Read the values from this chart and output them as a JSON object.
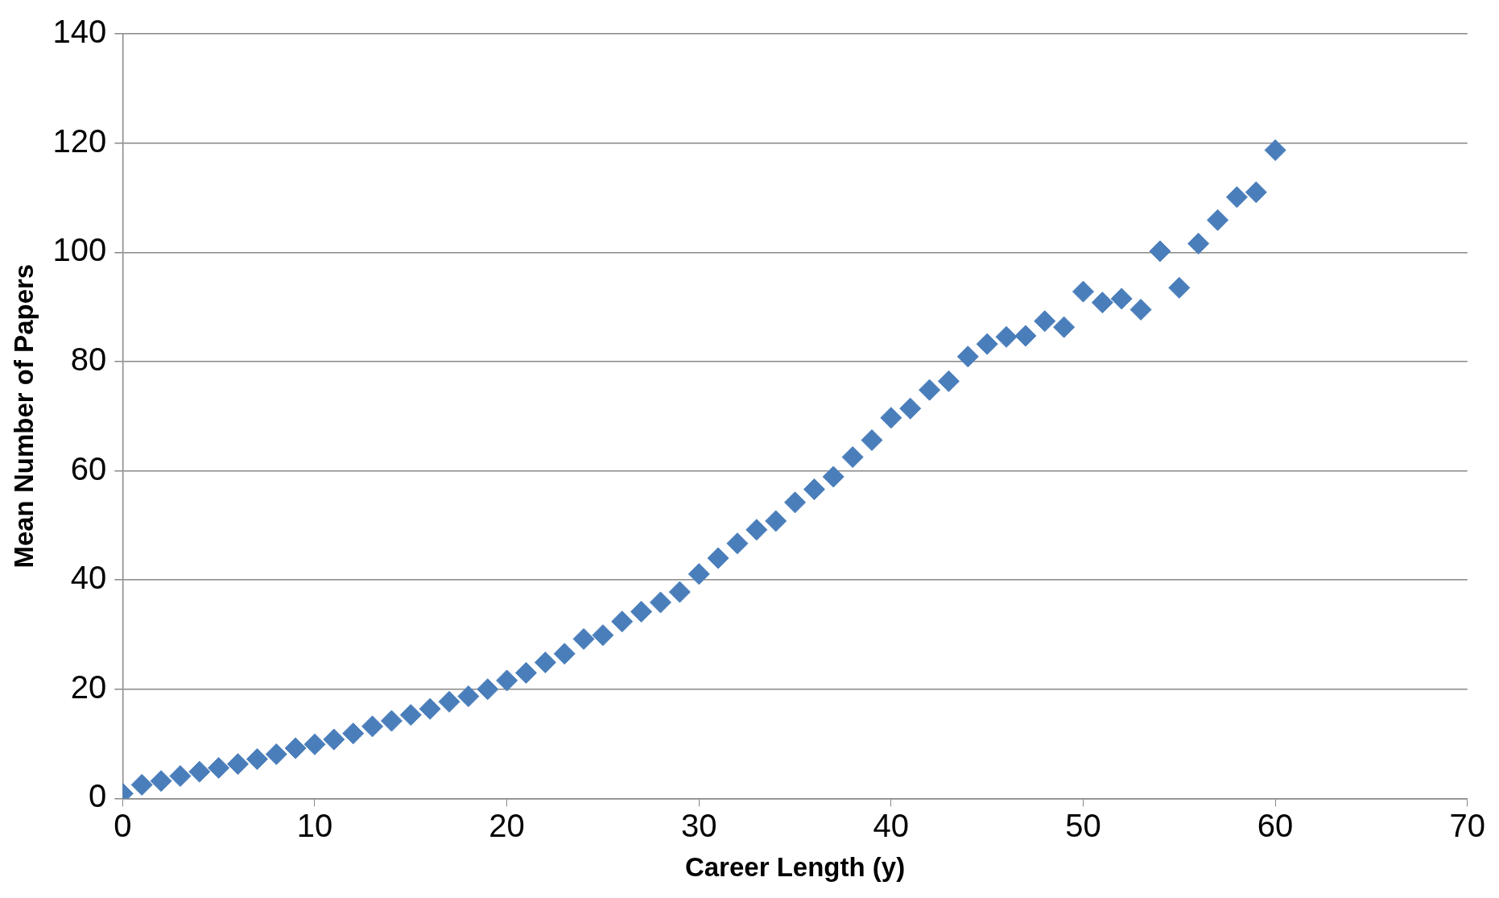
{
  "chart_data": {
    "type": "scatter",
    "xlabel": "Career Length (y)",
    "ylabel": "Mean Number of Papers",
    "x": [
      0,
      1,
      2,
      3,
      4,
      5,
      6,
      7,
      8,
      9,
      10,
      11,
      12,
      13,
      14,
      15,
      16,
      17,
      18,
      19,
      20,
      21,
      22,
      23,
      24,
      25,
      26,
      27,
      28,
      29,
      30,
      31,
      32,
      33,
      34,
      35,
      36,
      37,
      38,
      39,
      40,
      41,
      42,
      43,
      44,
      45,
      46,
      47,
      48,
      49,
      50,
      51,
      52,
      53,
      54,
      55,
      56,
      57,
      58,
      59,
      60
    ],
    "series": [
      {
        "color": "#4a7ebb",
        "values": [
          0.9,
          2.5,
          3.2,
          4.1,
          4.9,
          5.6,
          6.3,
          7.2,
          8.1,
          9.2,
          9.9,
          10.8,
          11.9,
          13.2,
          14.2,
          15.3,
          16.4,
          17.7,
          18.7,
          20,
          21.6,
          23,
          24.9,
          26.5,
          29.2,
          29.9,
          32.4,
          34.2,
          35.9,
          37.8,
          41.1,
          44,
          46.7,
          49.2,
          50.8,
          54.2,
          56.6,
          58.9,
          62.5,
          65.6,
          69.7,
          71.4,
          74.8,
          76.4,
          80.9,
          83.2,
          84.5,
          84.7,
          87.4,
          86.3,
          92.8,
          90.8,
          91.5,
          89.5,
          100.2,
          93.5,
          101.6,
          105.9,
          110.1,
          111,
          118.7
        ]
      }
    ],
    "xlim": [
      0,
      70
    ],
    "xticks": [
      0,
      10,
      20,
      30,
      40,
      50,
      60,
      70
    ],
    "ylim": [
      0,
      140
    ],
    "yticks": [
      0,
      20,
      40,
      60,
      80,
      100,
      120,
      140
    ],
    "grid": "y",
    "legend": false,
    "marker": "diamond"
  }
}
